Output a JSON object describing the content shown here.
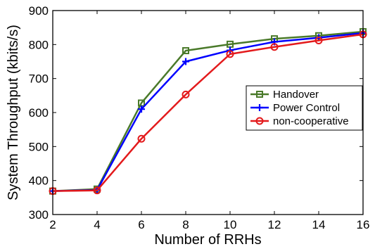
{
  "chart_data": {
    "type": "line",
    "title": "",
    "xlabel": "Number of RRHs",
    "ylabel": "System Throughput (kbits/s)",
    "x": [
      2,
      4,
      6,
      8,
      10,
      12,
      14,
      16
    ],
    "xlim": [
      2,
      16
    ],
    "ylim": [
      300,
      900
    ],
    "xticks": [
      "2",
      "4",
      "6",
      "8",
      "10",
      "12",
      "14",
      "16"
    ],
    "yticks": [
      "300",
      "400",
      "500",
      "600",
      "700",
      "800",
      "900"
    ],
    "grid": false,
    "legend_position": "right",
    "series": [
      {
        "name": "Handover",
        "color": "#4a7a2a",
        "marker": "square",
        "values": [
          369,
          375,
          628,
          782,
          801,
          817,
          826,
          838
        ]
      },
      {
        "name": "Power Control",
        "color": "#0000ff",
        "marker": "plus",
        "values": [
          369,
          372,
          610,
          750,
          783,
          808,
          820,
          834
        ]
      },
      {
        "name": "non-cooperative",
        "color": "#e31a1c",
        "marker": "circle",
        "values": [
          369,
          371,
          523,
          653,
          772,
          793,
          812,
          830
        ]
      }
    ]
  }
}
